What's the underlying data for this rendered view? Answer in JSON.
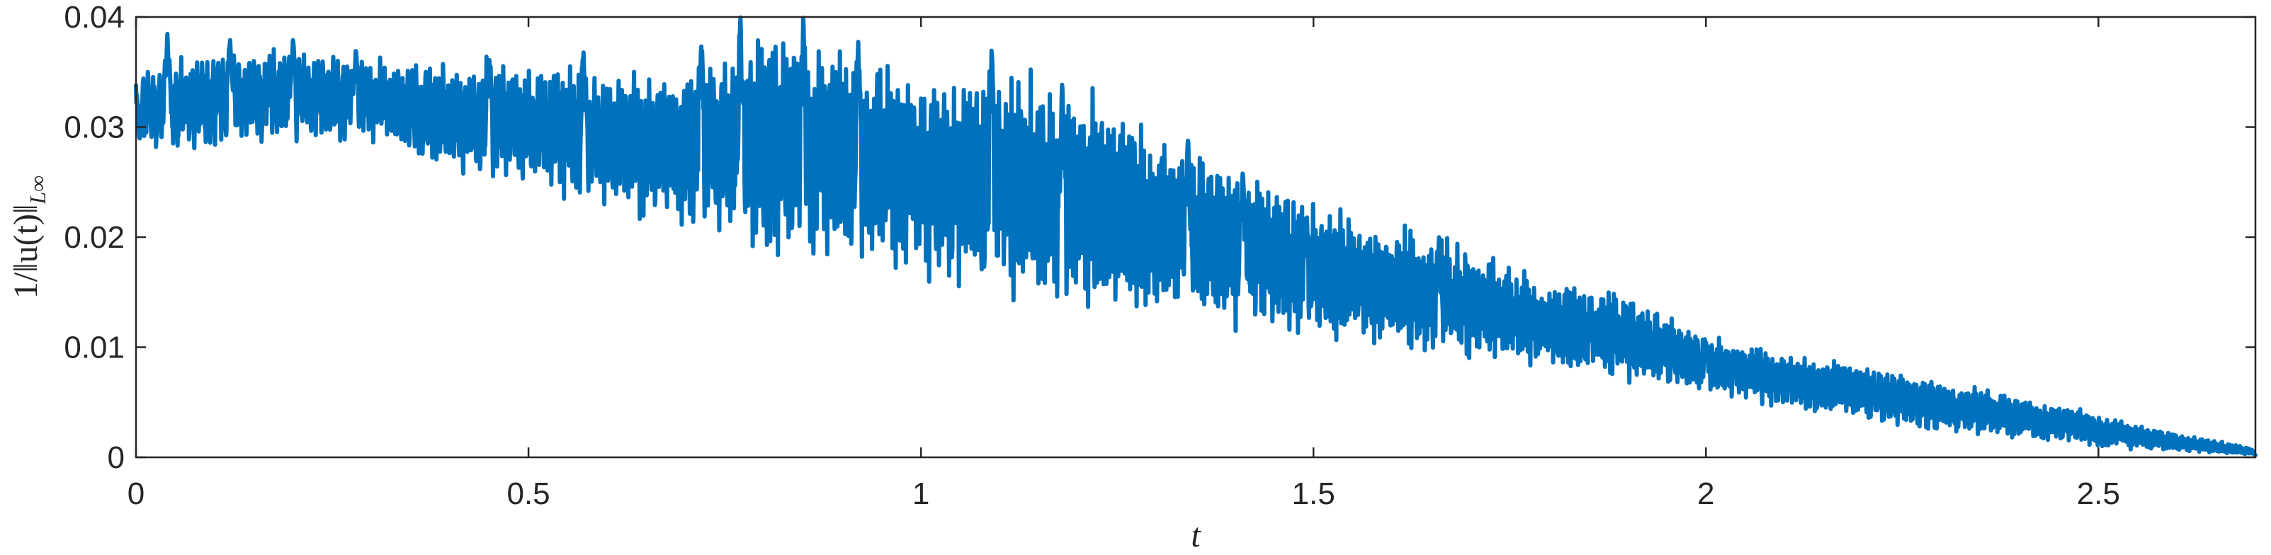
{
  "chart_data": {
    "type": "line",
    "title": "",
    "xlabel": "t",
    "ylabel": "1/‖u(t)‖",
    "ylabel_subscript": "L∞",
    "xlim": [
      0,
      2.7
    ],
    "ylim": [
      0,
      0.04
    ],
    "xticks": [
      0,
      0.5,
      1,
      1.5,
      2,
      2.5
    ],
    "xtick_labels": [
      "0",
      "0.5",
      "1",
      "1.5",
      "2",
      "2.5"
    ],
    "yticks": [
      0,
      0.01,
      0.02,
      0.03,
      0.04
    ],
    "ytick_labels": [
      "0",
      "0.01",
      "0.02",
      "0.03",
      "0.04"
    ],
    "grid": false,
    "series": [
      {
        "color": "#0072BD",
        "envelope": {
          "t": [
            0.0,
            0.1,
            0.2,
            0.3,
            0.4,
            0.5,
            0.6,
            0.7,
            0.8,
            0.9,
            1.0,
            1.1,
            1.2,
            1.3,
            1.4,
            1.5,
            1.6,
            1.7,
            1.8,
            1.9,
            2.0,
            2.1,
            2.2,
            2.3,
            2.4,
            2.5,
            2.6,
            2.7
          ],
          "high": [
            0.035,
            0.037,
            0.037,
            0.036,
            0.036,
            0.0355,
            0.035,
            0.035,
            0.039,
            0.037,
            0.035,
            0.035,
            0.033,
            0.029,
            0.026,
            0.023,
            0.021,
            0.019,
            0.016,
            0.015,
            0.011,
            0.0095,
            0.0085,
            0.0068,
            0.0055,
            0.0038,
            0.0022,
            0.0008
          ],
          "low": [
            0.028,
            0.028,
            0.029,
            0.029,
            0.026,
            0.025,
            0.023,
            0.021,
            0.019,
            0.018,
            0.017,
            0.015,
            0.014,
            0.013,
            0.012,
            0.011,
            0.01,
            0.009,
            0.008,
            0.007,
            0.006,
            0.0045,
            0.0035,
            0.0025,
            0.0018,
            0.001,
            0.0006,
            0.0002
          ]
        },
        "peaks": [
          [
            0.005,
            0.029
          ],
          [
            0.04,
            0.0385
          ],
          [
            0.12,
            0.038
          ],
          [
            0.2,
            0.038
          ],
          [
            0.28,
            0.037
          ],
          [
            0.45,
            0.0365
          ],
          [
            0.57,
            0.037
          ],
          [
            0.72,
            0.038
          ],
          [
            0.77,
            0.04
          ],
          [
            0.85,
            0.04
          ],
          [
            0.92,
            0.038
          ],
          [
            1.09,
            0.0375
          ],
          [
            1.18,
            0.034
          ],
          [
            1.34,
            0.029
          ],
          [
            1.41,
            0.026
          ],
          [
            1.49,
            0.022
          ],
          [
            1.66,
            0.02
          ],
          [
            2.0,
            0.0105
          ],
          [
            2.7,
            0.0002
          ]
        ]
      }
    ]
  }
}
